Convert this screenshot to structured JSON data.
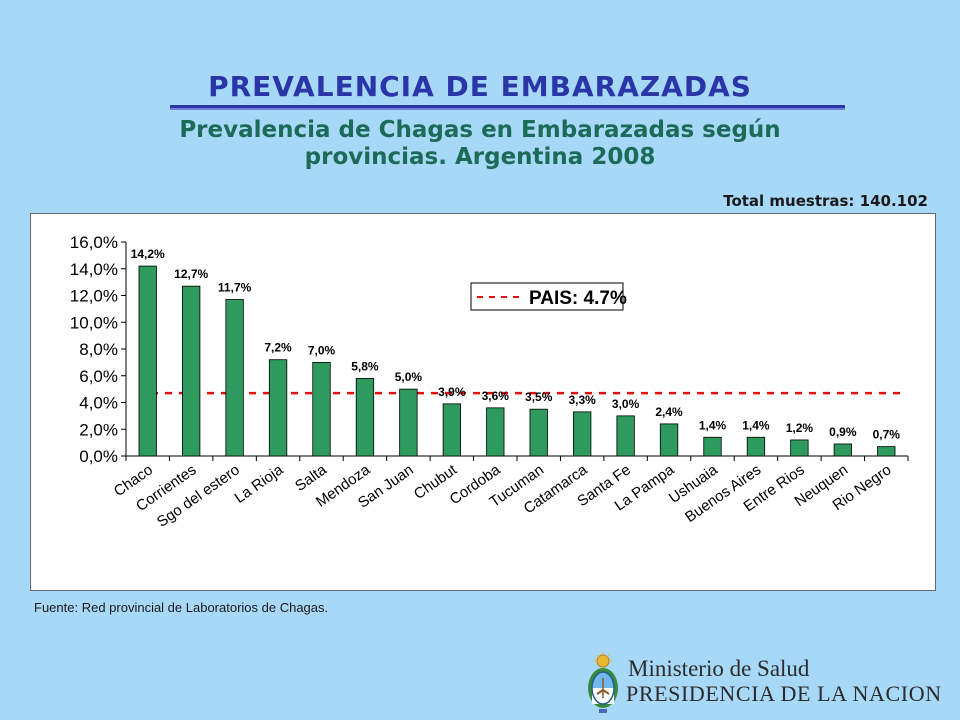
{
  "slide": {
    "title": "PREVALENCIA DE EMBARAZADAS",
    "subtitle_line1": "Prevalencia de Chagas en Embarazadas según",
    "subtitle_line2": "provincias.  Argentina 2008",
    "total_label": "Total muestras:",
    "total_value": "140.102",
    "source": "Fuente: Red provincial de Laboratorios de Chagas.",
    "footer_line1": "Ministerio de Salud",
    "footer_line2": "PRESIDENCIA DE LA NACION",
    "logo_icon": "argentina-coat-of-arms-icon"
  },
  "colors": {
    "background": "#a8d8f8",
    "title": "#2a35a8",
    "subtitle": "#1c6b58",
    "bar": "#2e9a5e",
    "reference_line": "#e01010"
  },
  "chart_data": {
    "type": "bar",
    "categories": [
      "Chaco",
      "Corrientes",
      "Sgo del estero",
      "La Rioja",
      "Salta",
      "Mendoza",
      "San Juan",
      "Chubut",
      "Cordoba",
      "Tucuman",
      "Catamarca",
      "Santa Fe",
      "La Pampa",
      "Ushuaia",
      "Buenos Aires",
      "Entre Rios",
      "Neuquen",
      "Rio Negro"
    ],
    "values": [
      14.2,
      12.7,
      11.7,
      7.2,
      7.0,
      5.8,
      5.0,
      3.9,
      3.6,
      3.5,
      3.3,
      3.0,
      2.4,
      1.4,
      1.4,
      1.2,
      0.9,
      0.7
    ],
    "value_labels": [
      "14,2%",
      "12,7%",
      "11,7%",
      "7,2%",
      "7,0%",
      "5,8%",
      "5,0%",
      "3,9%",
      "3,6%",
      "3,5%",
      "3,3%",
      "3,0%",
      "2,4%",
      "1,4%",
      "1,4%",
      "1,2%",
      "0,9%",
      "0,7%"
    ],
    "y_ticks": [
      0,
      2,
      4,
      6,
      8,
      10,
      12,
      14,
      16
    ],
    "y_tick_labels": [
      "0,0%",
      "2,0%",
      "4,0%",
      "6,0%",
      "8,0%",
      "10,0%",
      "12,0%",
      "14,0%",
      "16,0%"
    ],
    "ylim": [
      0,
      16
    ],
    "reference_line": {
      "value": 4.7,
      "label": "PAIS: 4.7%"
    },
    "grid": false,
    "legend_position": "top-right"
  }
}
